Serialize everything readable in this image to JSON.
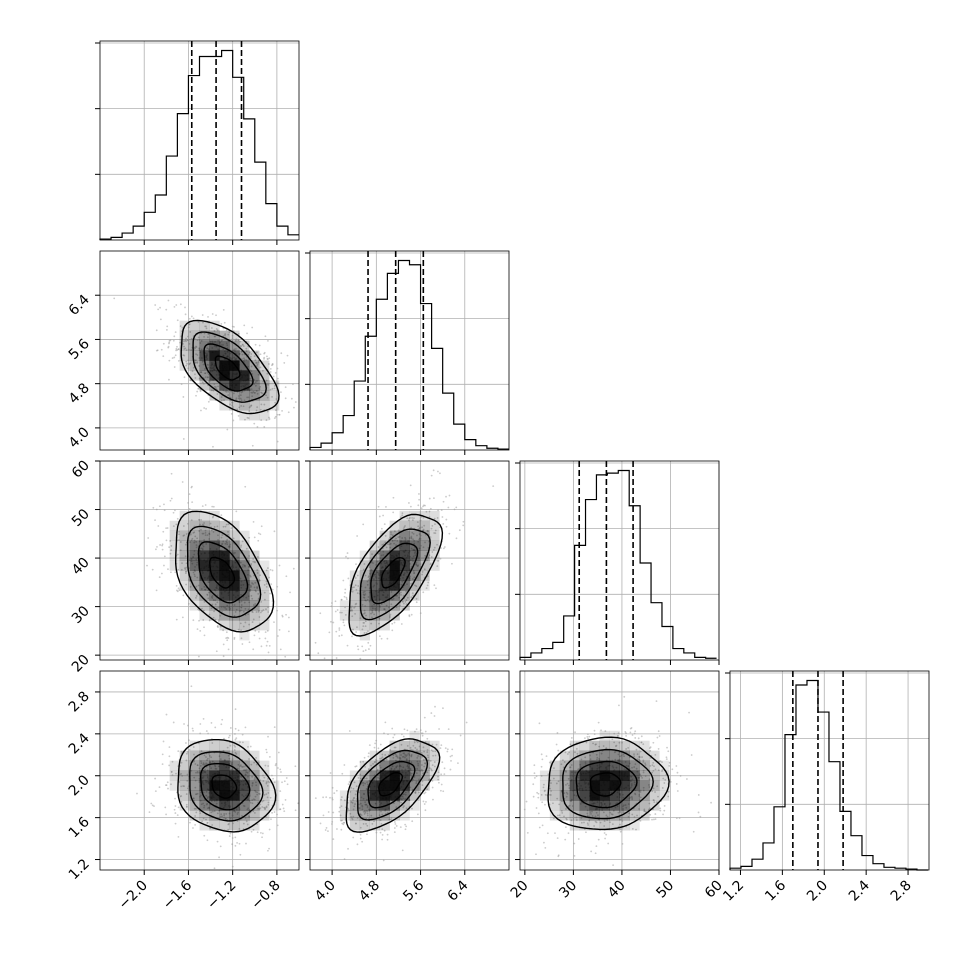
{
  "chart_data": {
    "type": "corner",
    "parameters": [
      {
        "id": "p1",
        "label": "",
        "range": [
          -2.4,
          -0.6
        ],
        "ticks": [
          -2.0,
          -1.6,
          -1.2,
          -0.8
        ],
        "tick_labels": [
          "−2.0",
          "−1.6",
          "−1.2",
          "−0.8"
        ],
        "quantiles": [
          -1.57,
          -1.35,
          -1.12
        ],
        "hist_bins": [
          -2.4,
          -2.3,
          -2.2,
          -2.1,
          -2.0,
          -1.9,
          -1.8,
          -1.7,
          -1.6,
          -1.5,
          -1.4,
          -1.3,
          -1.2,
          -1.1,
          -1.0,
          -0.9,
          -0.8,
          -0.7,
          -0.6
        ],
        "hist_counts": [
          1,
          3,
          8,
          16,
          32,
          52,
          97,
          146,
          190,
          212,
          212,
          219,
          188,
          140,
          90,
          42,
          16,
          6
        ]
      },
      {
        "id": "p2",
        "label": "",
        "range": [
          3.6,
          7.2
        ],
        "ticks": [
          4.0,
          4.8,
          5.6,
          6.4
        ],
        "tick_labels": [
          "4.0",
          "4.8",
          "5.6",
          "6.4"
        ],
        "quantiles": [
          4.65,
          5.15,
          5.65
        ],
        "hist_bins": [
          3.6,
          3.8,
          4.0,
          4.2,
          4.4,
          4.6,
          4.8,
          5.0,
          5.2,
          5.4,
          5.6,
          5.8,
          6.0,
          6.2,
          6.4,
          6.6,
          6.8,
          7.0,
          7.2
        ],
        "hist_counts": [
          3,
          8,
          20,
          40,
          80,
          132,
          175,
          205,
          220,
          215,
          170,
          118,
          66,
          30,
          12,
          5,
          2,
          1
        ]
      },
      {
        "id": "p3",
        "label": "",
        "range": [
          19,
          60
        ],
        "ticks": [
          20,
          30,
          40,
          50,
          60
        ],
        "tick_labels": [
          "20",
          "30",
          "40",
          "50",
          "60"
        ],
        "quantiles": [
          31.2,
          36.8,
          42.3
        ],
        "hist_bins": [
          19,
          21.25,
          23.5,
          25.75,
          28,
          30.25,
          32.5,
          34.75,
          37,
          39.25,
          41.5,
          43.75,
          46,
          48.25,
          50.5,
          52.75,
          55,
          57.25,
          59.5
        ],
        "hist_counts": [
          3,
          8,
          13,
          20,
          50,
          130,
          182,
          210,
          212,
          215,
          175,
          110,
          65,
          38,
          13,
          8,
          3,
          2
        ]
      },
      {
        "id": "p4",
        "label": "",
        "range": [
          1.1,
          3.0
        ],
        "ticks": [
          1.2,
          1.6,
          2.0,
          2.4,
          2.8
        ],
        "tick_labels": [
          "1.2",
          "1.6",
          "2.0",
          "2.4",
          "2.8"
        ],
        "quantiles": [
          1.7,
          1.94,
          2.18
        ],
        "hist_bins": [
          1.1,
          1.205,
          1.31,
          1.415,
          1.52,
          1.625,
          1.73,
          1.835,
          1.94,
          2.045,
          2.15,
          2.255,
          2.36,
          2.465,
          2.57,
          2.675,
          2.78,
          2.885,
          2.99
        ],
        "hist_counts": [
          2,
          4,
          12,
          30,
          70,
          150,
          205,
          210,
          175,
          120,
          65,
          38,
          16,
          7,
          3,
          2,
          1,
          0
        ]
      }
    ],
    "pairs": [
      {
        "x": "p1",
        "y": "p2",
        "center": [
          -1.25,
          5.08
        ],
        "sd": [
          0.22,
          0.42
        ],
        "rho": -0.55
      },
      {
        "x": "p1",
        "y": "p3",
        "center": [
          -1.3,
          37.0
        ],
        "sd": [
          0.22,
          6.2
        ],
        "rho": -0.45
      },
      {
        "x": "p2",
        "y": "p3",
        "center": [
          5.1,
          37.0
        ],
        "sd": [
          0.42,
          6.2
        ],
        "rho": 0.62
      },
      {
        "x": "p1",
        "y": "p4",
        "center": [
          -1.28,
          1.9
        ],
        "sd": [
          0.22,
          0.22
        ],
        "rho": -0.18
      },
      {
        "x": "p2",
        "y": "p4",
        "center": [
          5.05,
          1.92
        ],
        "sd": [
          0.42,
          0.22
        ],
        "rho": 0.55
      },
      {
        "x": "p3",
        "y": "p4",
        "center": [
          36.5,
          1.92
        ],
        "sd": [
          6.2,
          0.22
        ],
        "rho": 0.06
      }
    ],
    "contour_levels_sigma": [
      0.5,
      1.0,
      1.5,
      2.0
    ],
    "grid": true,
    "colors": {
      "ink": "#000000",
      "grid": "#b0b0b0",
      "density": "#000000",
      "scatter": "#9a9a9a",
      "background": "#ffffff"
    }
  }
}
